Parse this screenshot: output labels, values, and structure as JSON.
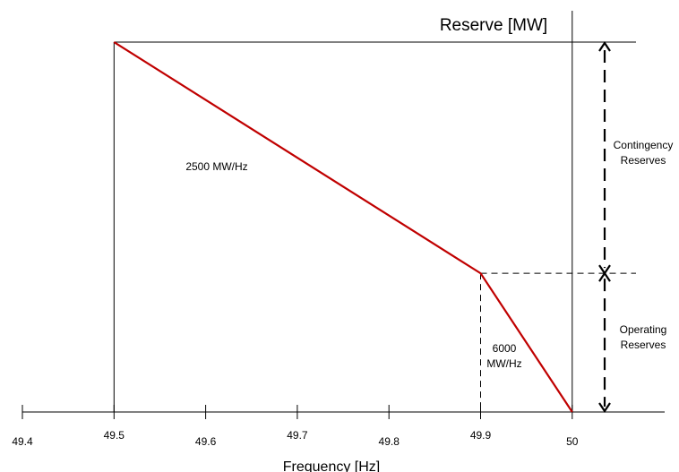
{
  "chart_data": {
    "type": "line",
    "title": "",
    "xlabel": "Frequency [Hz]",
    "ylabel": "Reserve [MW]",
    "x_ticks": [
      "49.4",
      "49.5",
      "49.6",
      "49.7",
      "49.8",
      "49.9",
      "50"
    ],
    "xlim": [
      49.4,
      50.1
    ],
    "series": [
      {
        "color": "#c00000",
        "x": [
          49.5,
          49.9,
          50.0
        ],
        "y": [
          1600,
          600,
          0
        ]
      }
    ],
    "ylim": [
      0,
      1600
    ],
    "annotations": {
      "slope_upper": "2500 MW/Hz",
      "slope_lower_line1": "6000",
      "slope_lower_line2": "MW/Hz",
      "contingency_line1": "Contingency",
      "contingency_line2": "Reserves",
      "operating_line1": "Operating",
      "operating_line2": "Reserves"
    },
    "grid": false
  }
}
